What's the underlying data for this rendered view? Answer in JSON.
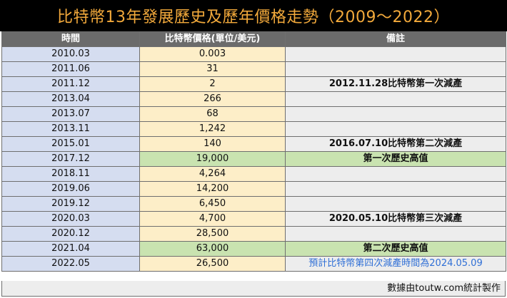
{
  "title": "比特幣13年發展歷史及歷年價格走勢（2009～2022）",
  "headers": {
    "date": "時間",
    "price": "比特幣價格(單位/美元)",
    "note": "備註"
  },
  "rows": [
    {
      "date": "2010.03",
      "price": "0.003",
      "note": ""
    },
    {
      "date": "2011.06",
      "price": "31",
      "note": ""
    },
    {
      "date": "2011.12",
      "price": "2",
      "note": "2012.11.28比特幣第一次減產"
    },
    {
      "date": "2013.04",
      "price": "266",
      "note": ""
    },
    {
      "date": "2013.07",
      "price": "68",
      "note": ""
    },
    {
      "date": "2013.11",
      "price": "1,242",
      "note": ""
    },
    {
      "date": "2015.01",
      "price": "140",
      "note": "2016.07.10比特幣第二次減產"
    },
    {
      "date": "2017.12",
      "price": "19,000",
      "note": "第一次歷史高值"
    },
    {
      "date": "2018.11",
      "price": "4,264",
      "note": ""
    },
    {
      "date": "2019.06",
      "price": "14,200",
      "note": ""
    },
    {
      "date": "2019.12",
      "price": "6,450",
      "note": ""
    },
    {
      "date": "2020.03",
      "price": "4,700",
      "note": "2020.05.10比特幣第三次減產"
    },
    {
      "date": "2020.12",
      "price": "28,500",
      "note": ""
    },
    {
      "date": "2021.04",
      "price": "63,000",
      "note": "第二次歷史高值"
    },
    {
      "date": "2022.05",
      "price": "26,500",
      "note": "預計比特幣第四次減產時間為2024.05.09"
    }
  ],
  "footer": "數據由toutw.com統計製作",
  "colors": {
    "title_bg": "#000000",
    "title_text": "#f2a93b",
    "header_bg": "#6b6b6b",
    "date_bg": "#d5ddf0",
    "price_bg": "#fdeec8",
    "note_bg": "#ededed",
    "highlight_bg": "#c9e3b0",
    "forecast_text": "#2f6fd6"
  }
}
